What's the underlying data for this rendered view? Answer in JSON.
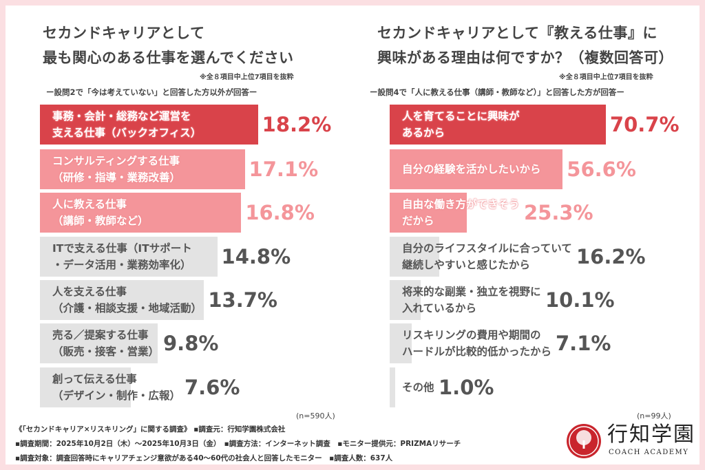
{
  "colors": {
    "top": "#d9434a",
    "mid": "#f4959a",
    "rest": "#e3e3e3",
    "border": "#fbdfe2"
  },
  "chart_data": [
    {
      "type": "bar",
      "orientation": "horizontal",
      "title": "セカンドキャリアとして\n最も関心のある仕事を選んでください",
      "title_lines": [
        "セカンドキャリアとして",
        "最も関心のある仕事を選んでください"
      ],
      "note": "※全８項目中上位7項目を抜粋",
      "subtitle": "ー設問2で「今は考えていない」と回答した方以外が回答ー",
      "n": "(n=590人)",
      "unit": "%",
      "categories": [
        [
          "事務・会計・総務など運営を",
          "支える仕事（バックオフィス）"
        ],
        [
          "コンサルティングする仕事",
          "（研修・指導・業務改善）"
        ],
        [
          "人に教える仕事",
          "（講師・教師など）"
        ],
        [
          "ITで支える仕事（ITサポート",
          "・データ活用・業務効率化）"
        ],
        [
          "人を支える仕事",
          "（介護・相談支援・地域活動）"
        ],
        [
          "売る／提案する仕事",
          "（販売・接客・営業）"
        ],
        [
          "創って伝える仕事",
          "（デザイン・制作・広報）"
        ]
      ],
      "values": [
        18.2,
        17.1,
        16.8,
        14.8,
        13.7,
        9.8,
        7.6
      ],
      "labels": [
        "18.2%",
        "17.1%",
        "16.8%",
        "14.8%",
        "13.7%",
        "9.8%",
        "7.6%"
      ]
    },
    {
      "type": "bar",
      "orientation": "horizontal",
      "title_lines": [
        "セカンドキャリアとして『教える仕事』に",
        "興味がある理由は何ですか？（複数回答可）"
      ],
      "note": "※全８項目中上位7項目を抜粋",
      "subtitle": "ー設問4で「人に教える仕事（講師・教師など）」と回答した方が回答ー",
      "n": "(n=99人)",
      "unit": "%",
      "categories": [
        [
          "人を育てることに興味が",
          "あるから"
        ],
        [
          "自分の経験を活かしたいから"
        ],
        [
          "自由な働き方ができそう",
          "だから"
        ],
        [
          "自分のライフスタイルに合っていて",
          "継続しやすいと感じたから"
        ],
        [
          "将来的な副業・独立を視野に",
          "入れているから"
        ],
        [
          "リスキリングの費用や期間の",
          "ハードルが比較的低かったから"
        ],
        [
          "その他"
        ]
      ],
      "values": [
        70.7,
        56.6,
        25.3,
        16.2,
        10.1,
        7.1,
        1.0
      ],
      "labels": [
        "70.7%",
        "56.6%",
        "25.3%",
        "16.2%",
        "10.1%",
        "7.1%",
        "1.0%"
      ]
    }
  ],
  "footer": {
    "line1": "《「セカンドキャリア×リスキリング」に関する調査》 ▪調査元：行知学園株式会社",
    "line2": "▪調査期間：2025年10月2日（木）～2025年10月3日（金）　▪調査方法：インターネット調査　▪モニター提供元：PRIZMAリサーチ",
    "line3": "▪調査対象：調査回答時にキャリアチェンジ意欲がある40～60代の社会人と回答したモニター　▪調査人数：637人"
  },
  "logo": {
    "name": "行知学園",
    "sub": "COACH ACADEMY",
    "emblem_text": "COACH"
  }
}
